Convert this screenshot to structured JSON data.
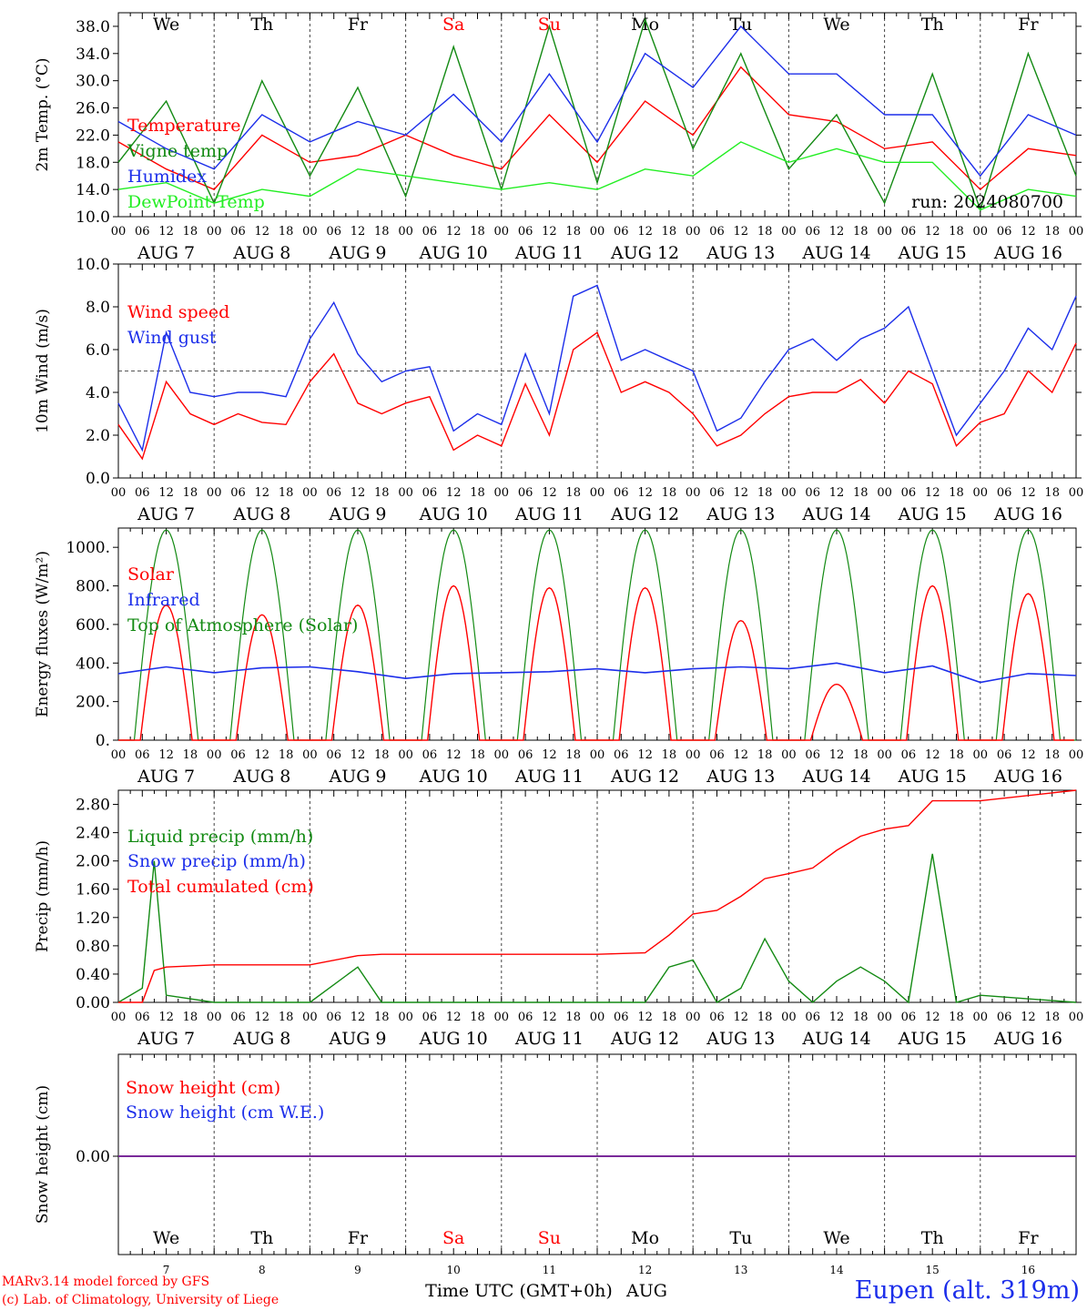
{
  "run_label": "run: 2024080700",
  "days": [
    {
      "dow": "We",
      "date": "7",
      "weekend": false
    },
    {
      "dow": "Th",
      "date": "8",
      "weekend": false
    },
    {
      "dow": "Fr",
      "date": "9",
      "weekend": false
    },
    {
      "dow": "Sa",
      "date": "10",
      "weekend": true
    },
    {
      "dow": "Su",
      "date": "11",
      "weekend": true
    },
    {
      "dow": "Mo",
      "date": "12",
      "weekend": false
    },
    {
      "dow": "Tu",
      "date": "13",
      "weekend": false
    },
    {
      "dow": "We",
      "date": "14",
      "weekend": false
    },
    {
      "dow": "Th",
      "date": "15",
      "weekend": false
    },
    {
      "dow": "Fr",
      "date": "16",
      "weekend": false
    }
  ],
  "month_label": "AUG",
  "hour_ticks": [
    "00",
    "06",
    "12",
    "18"
  ],
  "xlabel": "Time UTC (GMT+0h)",
  "footer": {
    "credit_line1": "MARv3.14 model forced by GFS",
    "credit_line2": "(c) Lab. of Climatology, University of Liege",
    "station": "Eupen (alt. 319m)"
  },
  "colors": {
    "red": "#ff0000",
    "green": "#138a13",
    "blue": "#1c2eea",
    "lightgreen": "#22ee22",
    "purple": "#7a2a9a"
  },
  "chart_data": [
    {
      "type": "line",
      "ylabel": "2m Temp. (°C)",
      "ylim": [
        10,
        40
      ],
      "ytick_values": [
        10,
        14,
        18,
        22,
        26,
        30,
        34,
        38
      ],
      "ytick_labels": [
        "10.0",
        "14.0",
        "18.0",
        "22.0",
        "26.0",
        "30.0",
        "34.0",
        "38.0"
      ],
      "x_hours": [
        0,
        12,
        24,
        36,
        48,
        60,
        72,
        84,
        96,
        108,
        120,
        132,
        144,
        156,
        168,
        180,
        192,
        204,
        216,
        228,
        240
      ],
      "series": [
        {
          "name": "Temperature",
          "color": "red",
          "values": [
            21,
            17,
            14,
            22,
            18,
            19,
            22,
            19,
            17,
            25,
            18,
            27,
            22,
            32,
            25,
            24,
            20,
            21,
            14,
            20,
            19
          ]
        },
        {
          "name": "Vigne temp",
          "color": "green",
          "values": [
            18,
            27,
            12,
            30,
            16,
            29,
            13,
            35,
            14,
            38,
            15,
            39,
            20,
            34,
            17,
            25,
            12,
            31,
            11,
            34,
            16
          ]
        },
        {
          "name": "Humidex",
          "color": "blue",
          "values": [
            24,
            20,
            17,
            25,
            21,
            24,
            22,
            28,
            21,
            31,
            21,
            34,
            29,
            38,
            31,
            31,
            25,
            25,
            16,
            25,
            22
          ]
        },
        {
          "name": "DewPoint Temp",
          "color": "lightgreen",
          "values": [
            14,
            15,
            12,
            14,
            13,
            17,
            16,
            15,
            14,
            15,
            14,
            17,
            16,
            21,
            18,
            20,
            18,
            18,
            11,
            14,
            13
          ]
        }
      ]
    },
    {
      "type": "line",
      "ylabel": "10m Wind (m/s)",
      "ylim": [
        0,
        10
      ],
      "ytick_values": [
        0,
        2,
        4,
        6,
        8,
        10
      ],
      "ytick_labels": [
        "0.0",
        "2.0",
        "4.0",
        "6.0",
        "8.0",
        "10.0"
      ],
      "reference_line": 5,
      "x_hours": [
        0,
        6,
        12,
        18,
        24,
        30,
        36,
        42,
        48,
        54,
        60,
        66,
        72,
        78,
        84,
        90,
        96,
        102,
        108,
        114,
        120,
        126,
        132,
        138,
        144,
        150,
        156,
        162,
        168,
        174,
        180,
        186,
        192,
        198,
        204,
        210,
        216,
        222,
        228,
        234,
        240
      ],
      "series": [
        {
          "name": "Wind speed",
          "color": "red",
          "values": [
            2.5,
            0.9,
            4.5,
            3.0,
            2.5,
            3.0,
            2.6,
            2.5,
            4.5,
            5.8,
            3.5,
            3.0,
            3.5,
            3.8,
            1.3,
            2.0,
            1.5,
            4.4,
            2.0,
            6.0,
            6.8,
            4.0,
            4.5,
            4.0,
            3.0,
            1.5,
            2.0,
            3.0,
            3.8,
            4.0,
            4.0,
            4.6,
            3.5,
            5.0,
            4.4,
            1.5,
            2.6,
            3.0,
            5.0,
            4.0,
            6.3
          ]
        },
        {
          "name": "Wind gust",
          "color": "blue",
          "values": [
            3.5,
            1.3,
            6.8,
            4.0,
            3.8,
            4.0,
            4.0,
            3.8,
            6.5,
            8.2,
            5.8,
            4.5,
            5.0,
            5.2,
            2.2,
            3.0,
            2.5,
            5.8,
            3.0,
            8.5,
            9.0,
            5.5,
            6.0,
            5.5,
            5.0,
            2.2,
            2.8,
            4.5,
            6.0,
            6.5,
            5.5,
            6.5,
            7.0,
            8.0,
            5.0,
            2.0,
            3.5,
            5.0,
            7.0,
            6.0,
            8.5
          ]
        }
      ]
    },
    {
      "type": "line",
      "ylabel": "Energy fluxes (W/m²)",
      "ylim": [
        0,
        1100
      ],
      "ytick_values": [
        0,
        200,
        400,
        600,
        800,
        1000
      ],
      "ytick_labels": [
        "0.",
        "200.",
        "400.",
        "600.",
        "800.",
        "1000."
      ],
      "solar_peaks": [
        700,
        650,
        700,
        800,
        790,
        790,
        620,
        290,
        800,
        760
      ],
      "series": [
        {
          "name": "Solar",
          "color": "red"
        },
        {
          "name": "Infrared",
          "color": "blue",
          "values": [
            345,
            380,
            350,
            375,
            380,
            355,
            320,
            345,
            350,
            355,
            370,
            350,
            370,
            380,
            370,
            400,
            350,
            385,
            300,
            345,
            335
          ]
        },
        {
          "name": "Top of Atmosphere (Solar)",
          "color": "green",
          "peak": 1090
        }
      ]
    },
    {
      "type": "line",
      "ylabel": "Precip (mm/h)",
      "ylim": [
        0,
        3
      ],
      "ytick_values": [
        0,
        0.4,
        0.8,
        1.2,
        1.6,
        2.0,
        2.4,
        2.8
      ],
      "ytick_labels": [
        "0.00",
        "0.40",
        "0.80",
        "1.20",
        "1.60",
        "2.00",
        "2.40",
        "2.80"
      ],
      "x_hours": [
        0,
        6,
        9,
        12,
        24,
        48,
        60,
        66,
        72,
        96,
        120,
        132,
        138,
        144,
        150,
        156,
        162,
        168,
        174,
        180,
        186,
        192,
        198,
        204,
        210,
        216,
        240
      ],
      "series": [
        {
          "name": "Liquid precip (mm/h)",
          "color": "green",
          "values": [
            0,
            0.2,
            2.0,
            0.1,
            0,
            0,
            0.5,
            0,
            0,
            0,
            0,
            0,
            0.5,
            0.6,
            0,
            0.2,
            0.9,
            0.3,
            0,
            0.3,
            0.5,
            0.3,
            0,
            2.1,
            0,
            0.1,
            0
          ]
        },
        {
          "name": "Snow precip (mm/h)",
          "color": "blue",
          "values": []
        },
        {
          "name": "Total cumulated (cm)",
          "color": "red",
          "values": [
            0,
            0,
            0.45,
            0.5,
            0.53,
            0.53,
            0.66,
            0.68,
            0.68,
            0.68,
            0.68,
            0.7,
            0.95,
            1.25,
            1.3,
            1.5,
            1.75,
            1.82,
            1.9,
            2.15,
            2.35,
            2.45,
            2.5,
            2.85,
            2.85,
            2.85,
            3.0
          ]
        }
      ]
    },
    {
      "type": "line",
      "ylabel": "Snow height (cm)",
      "ytick_labels": [
        "0.00"
      ],
      "series": [
        {
          "name": "Snow height (cm)",
          "color": "red",
          "values": [
            0,
            0
          ]
        },
        {
          "name": "Snow height (cm W.E.)",
          "color": "blue",
          "values": [
            0,
            0
          ]
        }
      ]
    }
  ]
}
